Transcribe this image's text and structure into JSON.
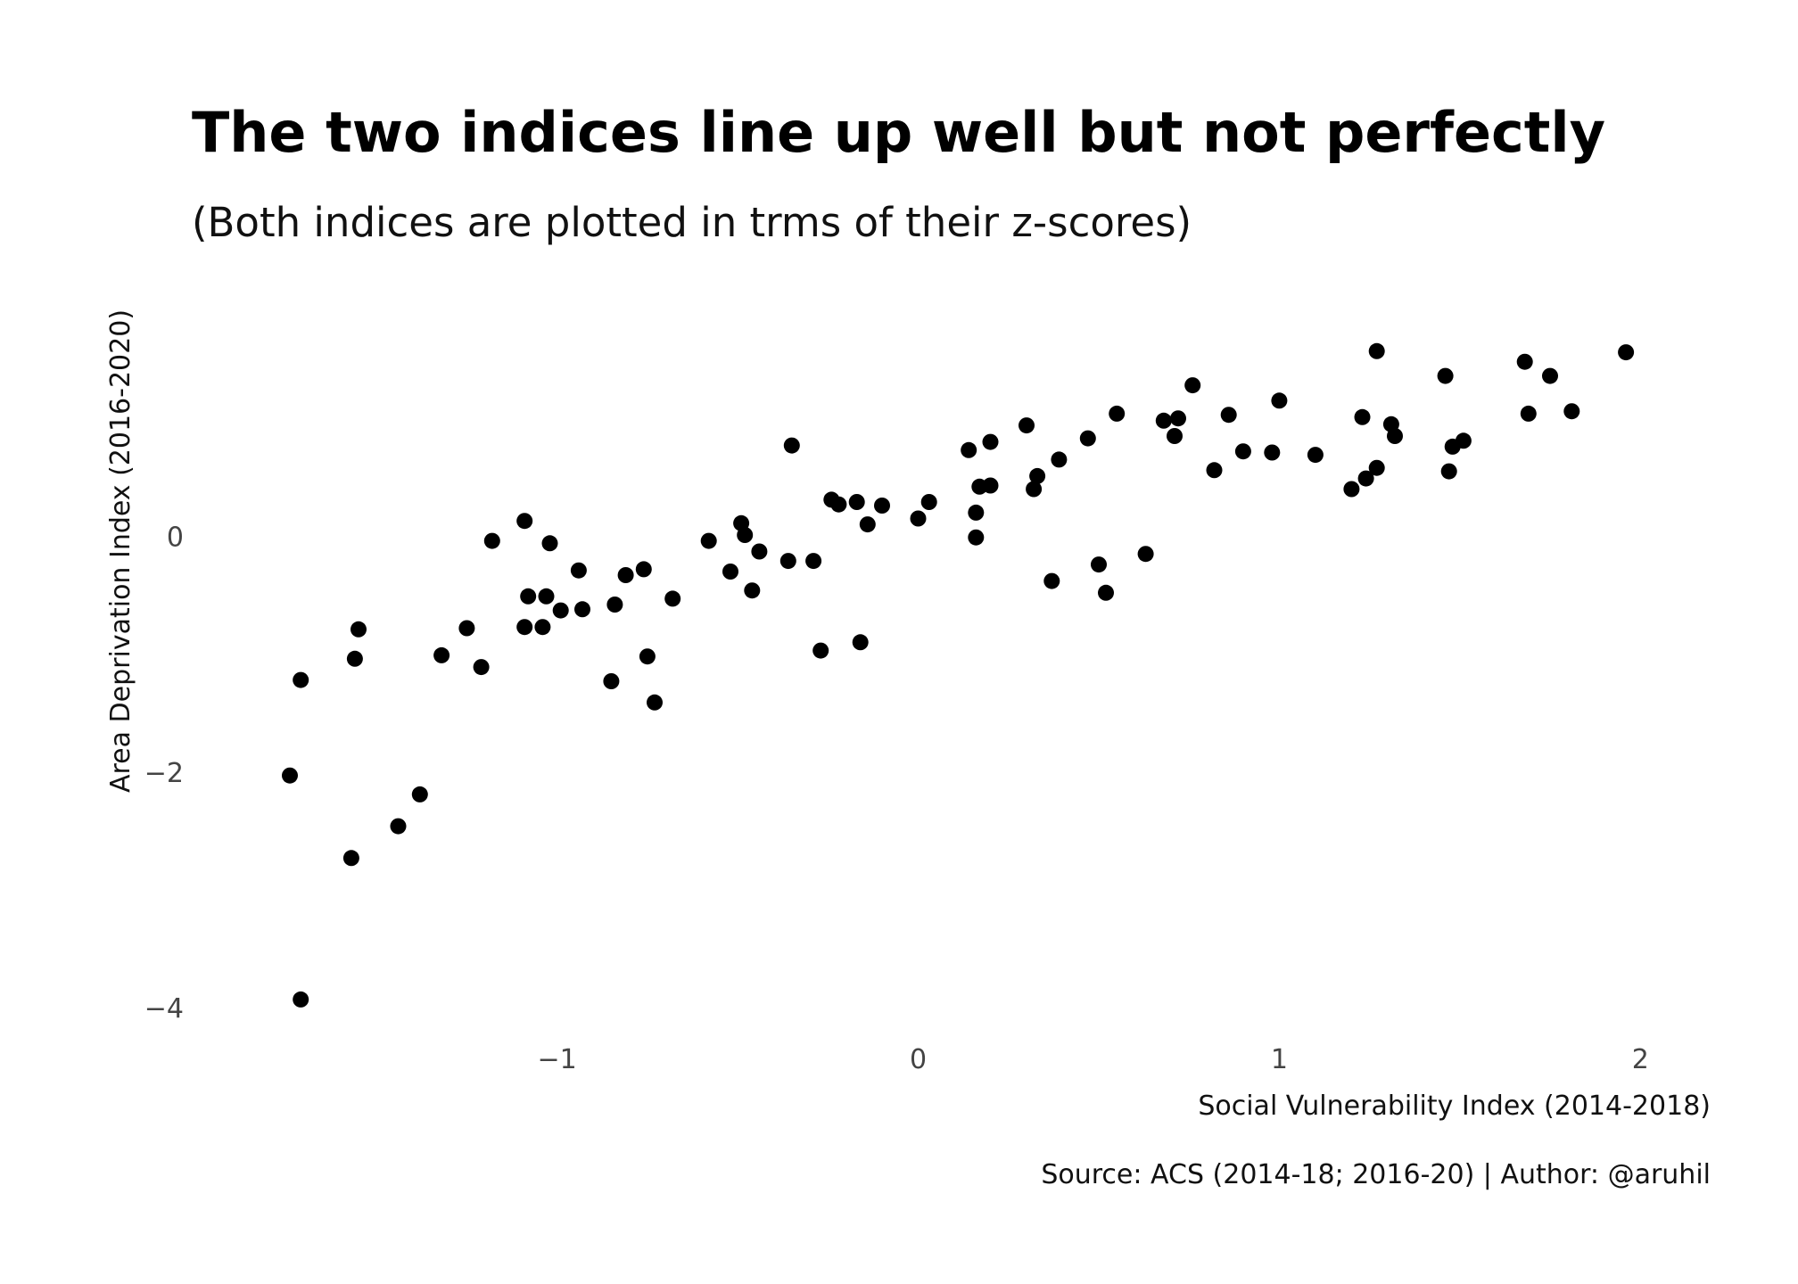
{
  "chart_data": {
    "type": "scatter",
    "title": "The two indices line up well but not perfectly",
    "subtitle": "(Both indices are plotted in trms of their z-scores)",
    "xlabel": "Social Vulnerability Index (2014-2018)",
    "ylabel": "Area Deprivation Index (2016-2020)",
    "caption": "Source: ACS (2014-18; 2016-20) | Author: @aruhil",
    "xlim": [
      -1.95,
      2.15
    ],
    "ylim": [
      -4.15,
      1.75
    ],
    "xticks": [
      -1,
      0,
      1,
      2
    ],
    "xtick_labels": [
      "−1",
      "0",
      "1",
      "2"
    ],
    "yticks": [
      -4,
      -2,
      0
    ],
    "ytick_labels": [
      "−4",
      "−2",
      "0"
    ],
    "grid": false,
    "legend": "none",
    "point_color": "#000000",
    "points": [
      {
        "x": -1.74,
        "y": -2.03
      },
      {
        "x": -1.71,
        "y": -1.22
      },
      {
        "x": -1.71,
        "y": -3.93
      },
      {
        "x": -1.56,
        "y": -1.04
      },
      {
        "x": -1.55,
        "y": -0.79
      },
      {
        "x": -1.57,
        "y": -2.73
      },
      {
        "x": -1.44,
        "y": -2.46
      },
      {
        "x": -1.38,
        "y": -2.19
      },
      {
        "x": -1.32,
        "y": -1.01
      },
      {
        "x": -1.25,
        "y": -0.78
      },
      {
        "x": -1.21,
        "y": -1.11
      },
      {
        "x": -1.18,
        "y": -0.04
      },
      {
        "x": -1.09,
        "y": 0.13
      },
      {
        "x": -1.08,
        "y": -0.51
      },
      {
        "x": -1.09,
        "y": -0.77
      },
      {
        "x": -1.04,
        "y": -0.77
      },
      {
        "x": -1.03,
        "y": -0.51
      },
      {
        "x": -1.02,
        "y": -0.06
      },
      {
        "x": -0.99,
        "y": -0.63
      },
      {
        "x": -0.94,
        "y": -0.29
      },
      {
        "x": -0.93,
        "y": -0.62
      },
      {
        "x": -0.84,
        "y": -0.58
      },
      {
        "x": -0.85,
        "y": -1.23
      },
      {
        "x": -0.81,
        "y": -0.33
      },
      {
        "x": -0.76,
        "y": -0.28
      },
      {
        "x": -0.75,
        "y": -1.02
      },
      {
        "x": -0.73,
        "y": -1.41
      },
      {
        "x": -0.68,
        "y": -0.53
      },
      {
        "x": -0.58,
        "y": -0.04
      },
      {
        "x": -0.52,
        "y": -0.3
      },
      {
        "x": -0.49,
        "y": 0.11
      },
      {
        "x": -0.48,
        "y": 0.01
      },
      {
        "x": -0.46,
        "y": -0.46
      },
      {
        "x": -0.44,
        "y": -0.13
      },
      {
        "x": -0.36,
        "y": -0.21
      },
      {
        "x": -0.35,
        "y": 0.77
      },
      {
        "x": -0.29,
        "y": -0.21
      },
      {
        "x": -0.27,
        "y": -0.97
      },
      {
        "x": -0.24,
        "y": 0.31
      },
      {
        "x": -0.22,
        "y": 0.27
      },
      {
        "x": -0.17,
        "y": 0.29
      },
      {
        "x": -0.16,
        "y": -0.9
      },
      {
        "x": -0.14,
        "y": 0.1
      },
      {
        "x": -0.1,
        "y": 0.26
      },
      {
        "x": 0.0,
        "y": 0.15
      },
      {
        "x": 0.03,
        "y": 0.29
      },
      {
        "x": 0.14,
        "y": 0.73
      },
      {
        "x": 0.16,
        "y": 0.2
      },
      {
        "x": 0.16,
        "y": -0.01
      },
      {
        "x": 0.17,
        "y": 0.42
      },
      {
        "x": 0.2,
        "y": 0.8
      },
      {
        "x": 0.2,
        "y": 0.43
      },
      {
        "x": 0.3,
        "y": 0.94
      },
      {
        "x": 0.32,
        "y": 0.4
      },
      {
        "x": 0.33,
        "y": 0.51
      },
      {
        "x": 0.37,
        "y": -0.38
      },
      {
        "x": 0.39,
        "y": 0.65
      },
      {
        "x": 0.47,
        "y": 0.83
      },
      {
        "x": 0.5,
        "y": -0.24
      },
      {
        "x": 0.52,
        "y": -0.48
      },
      {
        "x": 0.55,
        "y": 1.04
      },
      {
        "x": 0.63,
        "y": -0.15
      },
      {
        "x": 0.68,
        "y": 0.98
      },
      {
        "x": 0.71,
        "y": 0.85
      },
      {
        "x": 0.72,
        "y": 1.0
      },
      {
        "x": 0.76,
        "y": 1.28
      },
      {
        "x": 0.82,
        "y": 0.56
      },
      {
        "x": 0.86,
        "y": 1.03
      },
      {
        "x": 0.9,
        "y": 0.72
      },
      {
        "x": 0.98,
        "y": 0.71
      },
      {
        "x": 1.0,
        "y": 1.15
      },
      {
        "x": 1.1,
        "y": 0.69
      },
      {
        "x": 1.2,
        "y": 0.4
      },
      {
        "x": 1.23,
        "y": 1.01
      },
      {
        "x": 1.24,
        "y": 0.49
      },
      {
        "x": 1.27,
        "y": 1.57
      },
      {
        "x": 1.27,
        "y": 0.58
      },
      {
        "x": 1.31,
        "y": 0.95
      },
      {
        "x": 1.32,
        "y": 0.85
      },
      {
        "x": 1.46,
        "y": 1.36
      },
      {
        "x": 1.47,
        "y": 0.55
      },
      {
        "x": 1.48,
        "y": 0.76
      },
      {
        "x": 1.51,
        "y": 0.81
      },
      {
        "x": 1.68,
        "y": 1.48
      },
      {
        "x": 1.69,
        "y": 1.04
      },
      {
        "x": 1.75,
        "y": 1.36
      },
      {
        "x": 1.81,
        "y": 1.06
      },
      {
        "x": 1.96,
        "y": 1.56
      }
    ]
  }
}
